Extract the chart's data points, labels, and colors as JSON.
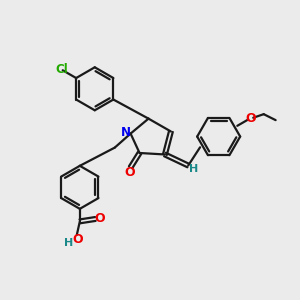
{
  "background_color": "#ebebeb",
  "bond_color": "#1a1a1a",
  "nitrogen_color": "#0000ee",
  "oxygen_color": "#ee0000",
  "chlorine_color": "#22aa00",
  "hydrogen_color": "#1a8888",
  "line_width": 1.6,
  "figsize": [
    3.0,
    3.0
  ],
  "dpi": 100,
  "xlim": [
    0,
    10
  ],
  "ylim": [
    0,
    10
  ]
}
